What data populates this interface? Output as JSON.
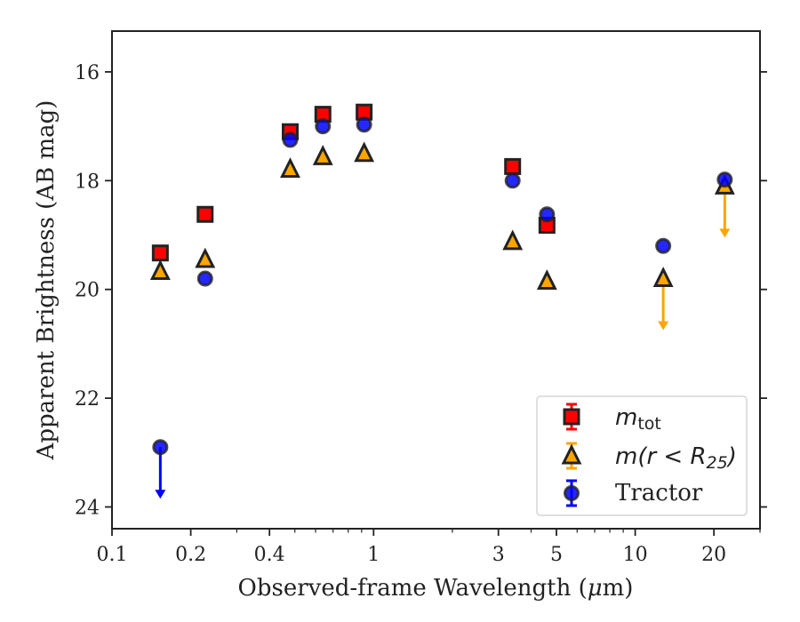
{
  "chart_data": {
    "type": "scatter",
    "xlabel_prefix": "Observed-frame Wavelength (",
    "xlabel_unit_mu": "μ",
    "xlabel_unit_rest": "m)",
    "ylabel": "Apparent Brightness (AB mag)",
    "x_scale": "log",
    "xlim": [
      0.1,
      30
    ],
    "ylim": [
      24.4,
      15.25
    ],
    "y_inverted": true,
    "grid": false,
    "legend_position": "lower-right",
    "x_ticks": [
      {
        "value": 0.1,
        "label": "0.1"
      },
      {
        "value": 0.2,
        "label": "0.2"
      },
      {
        "value": 0.4,
        "label": "0.4"
      },
      {
        "value": 1,
        "label": "1"
      },
      {
        "value": 3,
        "label": "3"
      },
      {
        "value": 5,
        "label": "5"
      },
      {
        "value": 10,
        "label": "10"
      },
      {
        "value": 20,
        "label": "20"
      }
    ],
    "y_ticks": [
      {
        "value": 16,
        "label": "16"
      },
      {
        "value": 18,
        "label": "18"
      },
      {
        "value": 20,
        "label": "20"
      },
      {
        "value": 22,
        "label": "22"
      },
      {
        "value": 24,
        "label": "24"
      }
    ],
    "series": [
      {
        "name": "m_tot",
        "legend_main": "m",
        "legend_sub": "tot",
        "marker": "square",
        "color": "#ff0000",
        "error_color": "#ff0000",
        "points": [
          {
            "x": 0.153,
            "y": 19.33,
            "upper_limit": false
          },
          {
            "x": 0.227,
            "y": 18.62,
            "upper_limit": false
          },
          {
            "x": 0.48,
            "y": 17.1,
            "upper_limit": false
          },
          {
            "x": 0.64,
            "y": 16.78,
            "upper_limit": false
          },
          {
            "x": 0.92,
            "y": 16.74,
            "upper_limit": false
          },
          {
            "x": 3.4,
            "y": 17.74,
            "upper_limit": false
          },
          {
            "x": 4.6,
            "y": 18.82,
            "upper_limit": false
          }
        ]
      },
      {
        "name": "m(r < R25)",
        "legend_main": "m(r < R",
        "legend_sub": "25",
        "legend_close": ")",
        "marker": "triangle",
        "color": "#ffa500",
        "error_color": "#ffa500",
        "points": [
          {
            "x": 0.153,
            "y": 19.67,
            "upper_limit": false
          },
          {
            "x": 0.227,
            "y": 19.45,
            "upper_limit": false
          },
          {
            "x": 0.48,
            "y": 17.79,
            "upper_limit": false
          },
          {
            "x": 0.64,
            "y": 17.56,
            "upper_limit": false
          },
          {
            "x": 0.92,
            "y": 17.5,
            "upper_limit": false
          },
          {
            "x": 3.4,
            "y": 19.12,
            "upper_limit": false
          },
          {
            "x": 4.6,
            "y": 19.85,
            "upper_limit": false
          },
          {
            "x": 12.8,
            "y": 19.8,
            "upper_limit": true
          },
          {
            "x": 22.0,
            "y": 18.1,
            "upper_limit": true
          }
        ]
      },
      {
        "name": "Tractor",
        "legend_main": "Tractor",
        "marker": "circle",
        "color": "#0000ff",
        "error_color": "#0000ff",
        "points": [
          {
            "x": 0.153,
            "y": 22.9,
            "upper_limit": true
          },
          {
            "x": 0.227,
            "y": 19.8,
            "upper_limit": false
          },
          {
            "x": 0.48,
            "y": 17.25,
            "upper_limit": false
          },
          {
            "x": 0.64,
            "y": 17.0,
            "upper_limit": false
          },
          {
            "x": 0.92,
            "y": 16.97,
            "upper_limit": false
          },
          {
            "x": 3.4,
            "y": 18.0,
            "upper_limit": false
          },
          {
            "x": 4.6,
            "y": 18.62,
            "upper_limit": false
          },
          {
            "x": 12.8,
            "y": 19.2,
            "upper_limit": false
          },
          {
            "x": 22.0,
            "y": 17.98,
            "upper_limit": false
          }
        ]
      }
    ]
  }
}
